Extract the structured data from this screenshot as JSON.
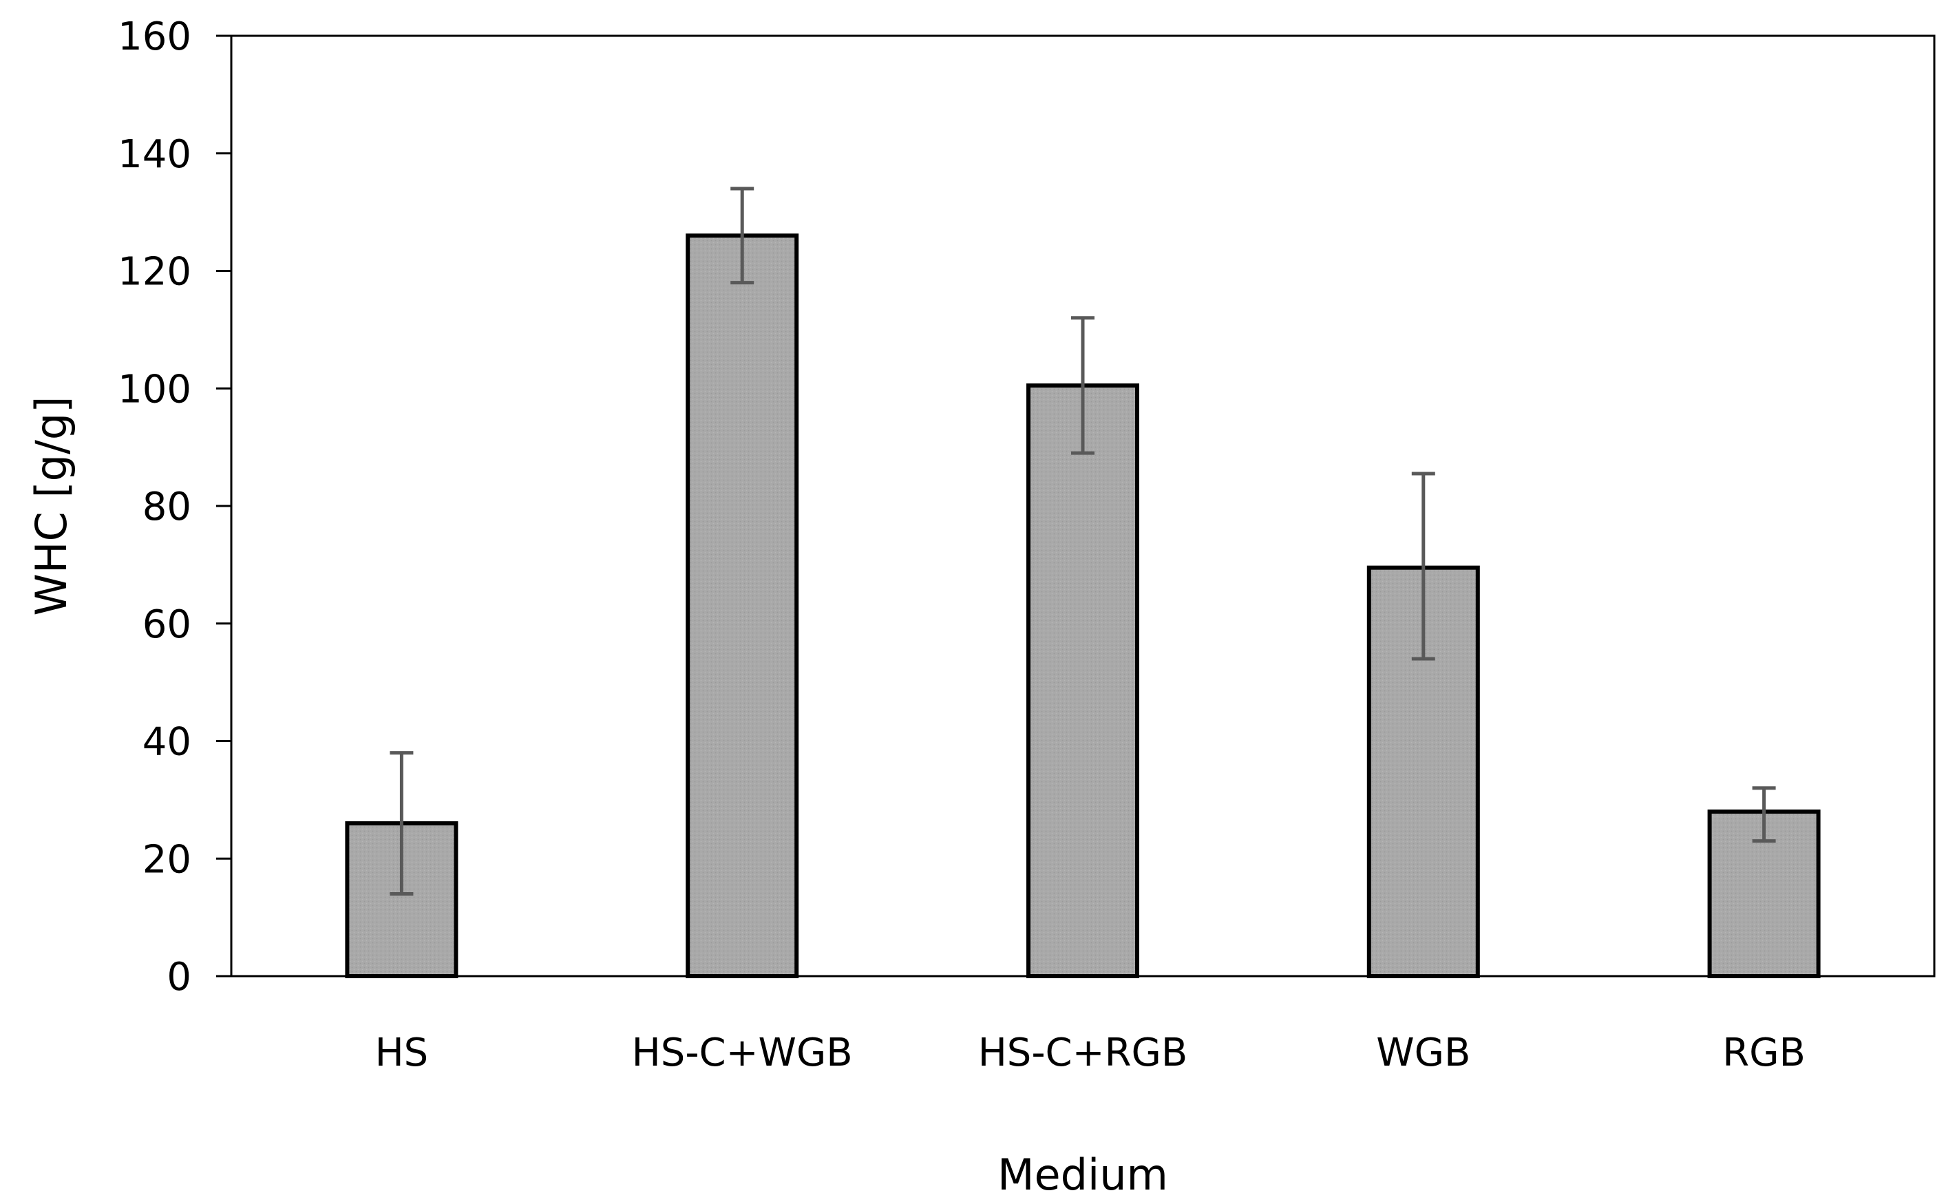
{
  "chart_data": {
    "type": "bar",
    "title": "",
    "xlabel": "Medium",
    "ylabel": "WHC [g/g]",
    "categories": [
      "HS",
      "HS-C+WGB",
      "HS-C+RGB",
      "WGB",
      "RGB"
    ],
    "values": [
      26,
      126,
      100.5,
      69.5,
      28
    ],
    "error_bars": {
      "lower": [
        14,
        118,
        89,
        54,
        23
      ],
      "upper": [
        38,
        134,
        112,
        85.5,
        32
      ]
    },
    "ylim": [
      0,
      160
    ],
    "yticks": [
      0,
      20,
      40,
      60,
      80,
      100,
      120,
      140,
      160
    ],
    "grid": false,
    "legend": "none",
    "colors": {
      "bar_fill": "#a9a9a9",
      "bar_stroke": "#000000",
      "error_bar": "#595959",
      "axis": "#000000"
    }
  }
}
